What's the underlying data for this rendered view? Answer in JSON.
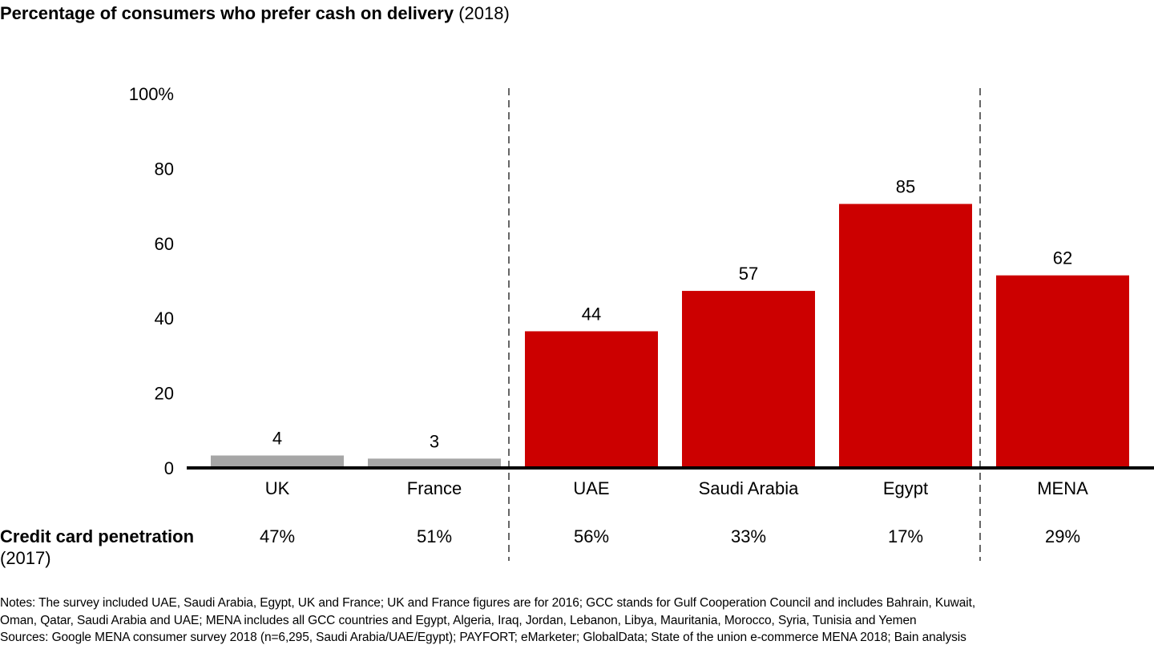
{
  "title": {
    "main": "Percentage of consumers who prefer cash on delivery",
    "suffix": "(2018)"
  },
  "chart_data": {
    "type": "bar",
    "categories": [
      "UK",
      "France",
      "UAE",
      "Saudi Arabia",
      "Egypt",
      "MENA"
    ],
    "values": [
      4,
      3,
      44,
      57,
      85,
      62
    ],
    "data_labels": [
      "4",
      "3",
      "44",
      "57",
      "85",
      "62"
    ],
    "colors": [
      "#a6a6a6",
      "#a6a6a6",
      "#cc0000",
      "#cc0000",
      "#cc0000",
      "#cc0000"
    ],
    "y_ticks": [
      "0",
      "20",
      "40",
      "60",
      "80",
      "100%"
    ],
    "ylim": [
      0,
      100
    ],
    "grid": false,
    "group_separators_after": [
      "France",
      "Egypt"
    ]
  },
  "credit_card": {
    "label": "Credit card penetration",
    "year": "(2017)",
    "values": [
      "47%",
      "51%",
      "56%",
      "33%",
      "17%",
      "29%"
    ]
  },
  "notes": [
    "Notes: The survey included UAE, Saudi Arabia, Egypt, UK and France; UK and France figures are for 2016; GCC stands for Gulf Cooperation Council and includes Bahrain, Kuwait,",
    "Oman, Qatar, Saudi Arabia and UAE; MENA includes all GCC countries and Egypt, Algeria, Iraq, Jordan, Lebanon, Libya, Mauritania, Morocco, Syria, Tunisia and Yemen",
    "Sources: Google MENA consumer survey 2018 (n=6,295, Saudi Arabia/UAE/Egypt); PAYFORT; eMarketer; GlobalData; State of the union e-commerce MENA 2018; Bain analysis"
  ]
}
